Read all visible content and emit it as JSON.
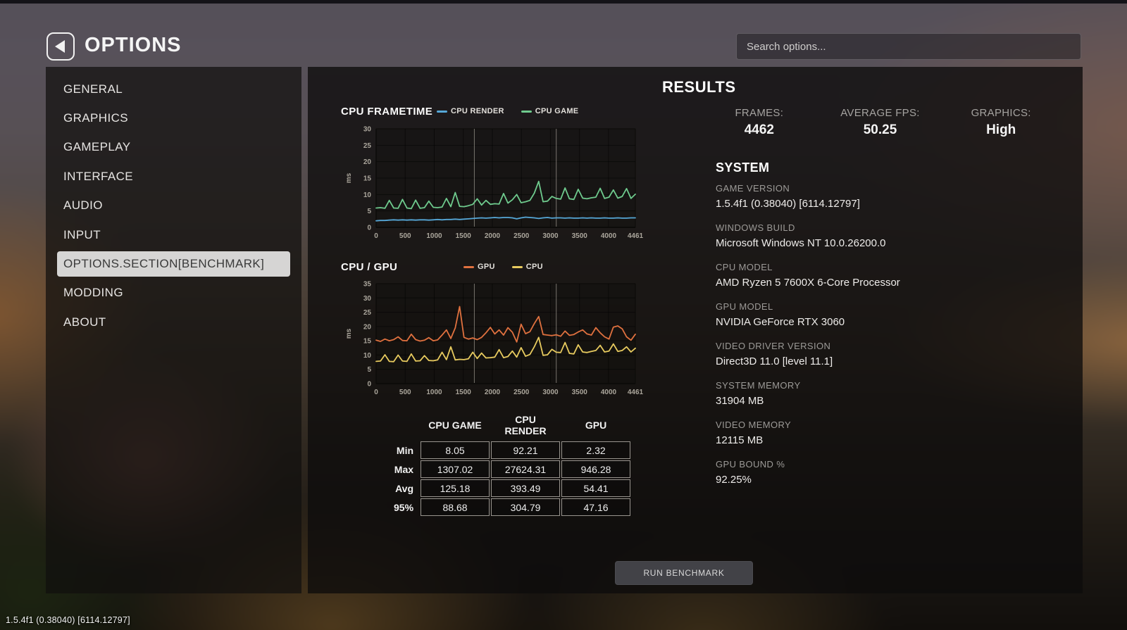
{
  "header": {
    "title": "OPTIONS",
    "search_placeholder": "Search options..."
  },
  "sidebar": {
    "items": [
      {
        "label": "GENERAL"
      },
      {
        "label": "GRAPHICS"
      },
      {
        "label": "GAMEPLAY"
      },
      {
        "label": "INTERFACE"
      },
      {
        "label": "AUDIO"
      },
      {
        "label": "INPUT"
      },
      {
        "label": "OPTIONS.SECTION[BENCHMARK]",
        "selected": true
      },
      {
        "label": "MODDING"
      },
      {
        "label": "ABOUT"
      }
    ]
  },
  "results": {
    "title": "RESULTS",
    "stats": [
      {
        "label": "FRAMES:",
        "value": "4462"
      },
      {
        "label": "AVERAGE FPS:",
        "value": "50.25"
      },
      {
        "label": "GRAPHICS:",
        "value": "High"
      }
    ],
    "system": {
      "title": "SYSTEM",
      "fields": [
        {
          "label": "GAME VERSION",
          "value": "1.5.4f1 (0.38040) [6114.12797]"
        },
        {
          "label": "WINDOWS BUILD",
          "value": "Microsoft Windows NT 10.0.26200.0"
        },
        {
          "label": "CPU MODEL",
          "value": "AMD Ryzen 5 7600X 6-Core Processor"
        },
        {
          "label": "GPU MODEL",
          "value": "NVIDIA GeForce RTX 3060"
        },
        {
          "label": "VIDEO DRIVER VERSION",
          "value": "Direct3D 11.0 [level 11.1]"
        },
        {
          "label": "SYSTEM MEMORY",
          "value": "31904 MB"
        },
        {
          "label": "VIDEO MEMORY",
          "value": "12115 MB"
        },
        {
          "label": "GPU BOUND %",
          "value": "92.25%"
        }
      ]
    }
  },
  "table": {
    "headers": [
      "CPU GAME",
      "CPU RENDER",
      "GPU"
    ],
    "rows": [
      {
        "label": "Min",
        "values": [
          "8.05",
          "92.21",
          "2.32"
        ]
      },
      {
        "label": "Max",
        "values": [
          "1307.02",
          "27624.31",
          "946.28"
        ]
      },
      {
        "label": "Avg",
        "values": [
          "125.18",
          "393.49",
          "54.41"
        ]
      },
      {
        "label": "95%",
        "values": [
          "88.68",
          "304.79",
          "47.16"
        ]
      }
    ]
  },
  "run_button": {
    "label": "RUN BENCHMARK"
  },
  "footer": {
    "version": "1.5.4f1 (0.38040) [6114.12797]"
  },
  "chart_data": [
    {
      "type": "line",
      "title": "CPU FRAMETIME",
      "ylabel": "ms",
      "ylim": [
        0,
        30
      ],
      "yticks": [
        0,
        5,
        10,
        15,
        20,
        25,
        30
      ],
      "xlim": [
        0,
        4461
      ],
      "xticks": [
        0,
        500,
        1000,
        1500,
        2000,
        2500,
        3000,
        3500,
        4000,
        4461
      ],
      "markers": [
        1690,
        3100
      ],
      "grid": true,
      "legend_position": "top",
      "series": [
        {
          "name": "CPU RENDER",
          "color": "#56a8d8",
          "values": [
            2.0,
            2.1,
            2.1,
            2.2,
            2.3,
            2.2,
            2.3,
            2.2,
            2.3,
            2.2,
            2.3,
            2.3,
            2.2,
            2.3,
            2.4,
            2.3,
            2.4,
            2.4,
            2.5,
            2.4,
            2.5,
            2.6,
            2.7,
            2.8,
            2.9,
            2.8,
            2.9,
            3.0,
            2.9,
            3.0,
            3.0,
            2.9,
            2.6,
            2.9,
            3.1,
            3.0,
            2.9,
            2.7,
            2.9,
            3.0,
            2.8,
            2.9,
            2.9,
            2.8,
            2.9,
            2.8,
            2.8,
            2.9,
            2.8,
            2.9,
            2.8,
            2.8,
            2.9,
            2.8,
            2.8,
            2.9,
            2.8,
            2.8,
            2.9,
            2.9
          ]
        },
        {
          "name": "CPU GAME",
          "color": "#6fcb8e",
          "values": [
            5.9,
            6.0,
            5.8,
            8.2,
            5.9,
            5.8,
            8.5,
            5.9,
            5.7,
            8.3,
            5.8,
            6.0,
            8.0,
            6.1,
            6.0,
            6.2,
            8.8,
            6.3,
            10.6,
            6.4,
            6.3,
            6.6,
            7.0,
            8.7,
            6.8,
            8.2,
            7.0,
            7.2,
            7.1,
            10.3,
            7.4,
            8.4,
            10.0,
            7.5,
            7.8,
            8.2,
            10.4,
            14.0,
            7.8,
            8.0,
            9.4,
            8.8,
            8.6,
            12.0,
            8.7,
            8.5,
            11.6,
            8.9,
            8.7,
            9.0,
            9.2,
            11.9,
            8.8,
            9.2,
            11.4,
            8.9,
            9.4,
            11.8,
            8.8,
            10.1
          ]
        }
      ]
    },
    {
      "type": "line",
      "title": "CPU / GPU",
      "ylabel": "ms",
      "ylim": [
        0,
        35
      ],
      "yticks": [
        0,
        5,
        10,
        15,
        20,
        25,
        30,
        35
      ],
      "xlim": [
        0,
        4461
      ],
      "xticks": [
        0,
        500,
        1000,
        1500,
        2000,
        2500,
        3000,
        3500,
        4000,
        4461
      ],
      "markers": [
        1690,
        3100
      ],
      "grid": true,
      "legend_position": "top",
      "series": [
        {
          "name": "GPU",
          "color": "#e0713f",
          "values": [
            15.2,
            14.8,
            15.6,
            15.0,
            15.4,
            16.4,
            15.1,
            15.0,
            17.3,
            15.4,
            14.9,
            15.2,
            16.1,
            15.0,
            15.3,
            17.0,
            18.8,
            15.8,
            19.5,
            27.0,
            16.2,
            15.6,
            16.0,
            15.4,
            16.2,
            17.8,
            19.7,
            17.4,
            18.8,
            17.0,
            19.6,
            18.0,
            14.6,
            20.8,
            17.5,
            18.2,
            21.0,
            23.5,
            17.2,
            17.0,
            16.8,
            17.1,
            16.6,
            18.4,
            16.9,
            17.2,
            18.1,
            18.8,
            17.4,
            17.0,
            19.6,
            17.8,
            16.4,
            15.6,
            19.8,
            20.2,
            19.2,
            16.4,
            15.2,
            17.3
          ]
        },
        {
          "name": "CPU",
          "color": "#e8cb5f",
          "values": [
            7.8,
            7.9,
            10.1,
            7.8,
            7.7,
            10.0,
            7.9,
            7.8,
            10.4,
            7.9,
            8.0,
            9.8,
            8.1,
            8.0,
            8.3,
            11.0,
            8.4,
            12.9,
            8.3,
            8.5,
            8.4,
            8.7,
            11.0,
            8.8,
            10.7,
            9.0,
            9.1,
            9.3,
            11.9,
            9.1,
            9.5,
            11.4,
            9.3,
            12.6,
            9.6,
            10.2,
            12.9,
            16.2,
            9.9,
            10.1,
            12.0,
            11.0,
            10.9,
            14.4,
            10.6,
            10.4,
            13.6,
            11.1,
            10.9,
            11.3,
            11.6,
            13.4,
            11.1,
            11.4,
            13.9,
            11.3,
            11.6,
            12.9,
            11.1,
            12.4
          ]
        }
      ]
    }
  ]
}
